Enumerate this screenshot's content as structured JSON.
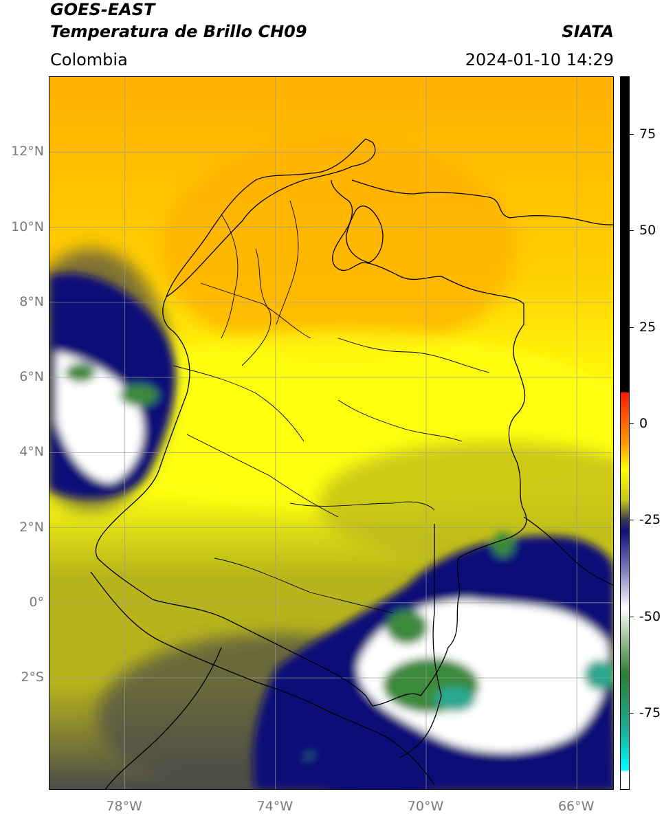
{
  "header": {
    "satellite": "GOES-EAST",
    "product": "Temperatura de Brillo CH09",
    "region": "Colombia",
    "brand": "SIATA",
    "datetime": "2024-01-10 14:29"
  },
  "axes": {
    "lat_labels": [
      "12°N",
      "10°N",
      "8°N",
      "6°N",
      "4°N",
      "2°N",
      "0°",
      "2°S"
    ],
    "lat_values": [
      12,
      10,
      8,
      6,
      4,
      2,
      0,
      -2
    ],
    "lon_labels": [
      "78°W",
      "74°W",
      "70°W",
      "66°W"
    ],
    "lon_values": [
      -78,
      -74,
      -70,
      -66
    ],
    "lon_range": [
      -80,
      -65
    ],
    "lat_range": [
      -5,
      14
    ]
  },
  "colorbar": {
    "ticks": [
      "75",
      "50",
      "25",
      "0",
      "-25",
      "-50",
      "-75"
    ],
    "tick_values": [
      75,
      50,
      25,
      0,
      -25,
      -50,
      -75
    ],
    "range": [
      -95,
      90
    ],
    "stops": [
      {
        "v": 90,
        "c": "#000000"
      },
      {
        "v": 8.1,
        "c": "#000000"
      },
      {
        "v": 8,
        "c": "#ff1a00"
      },
      {
        "v": -5,
        "c": "#ff9900"
      },
      {
        "v": -12,
        "c": "#ffff00"
      },
      {
        "v": -20,
        "c": "#c8c41a"
      },
      {
        "v": -25,
        "c": "#3a3a50"
      },
      {
        "v": -28,
        "c": "#10107a"
      },
      {
        "v": -38,
        "c": "#7d7dc0"
      },
      {
        "v": -48,
        "c": "#ffffff"
      },
      {
        "v": -55,
        "c": "#a8c8a0"
      },
      {
        "v": -65,
        "c": "#2e7d32"
      },
      {
        "v": -80,
        "c": "#1ab09a"
      },
      {
        "v": -90,
        "c": "#00ffff"
      },
      {
        "v": -90.5,
        "c": "#ffffff"
      },
      {
        "v": -95,
        "c": "#ffffff"
      }
    ]
  },
  "colors": {
    "warm": "#ffb000",
    "mid_warm": "#ffd000",
    "yellow": "#ffff10",
    "olive": "#b8b41c",
    "dark": "#4a4a4a",
    "navy": "#101078",
    "white": "#ffffff",
    "green": "#3a8a3a",
    "teal": "#2aa890",
    "grid": "#9a9a9a",
    "border": "#000000"
  }
}
